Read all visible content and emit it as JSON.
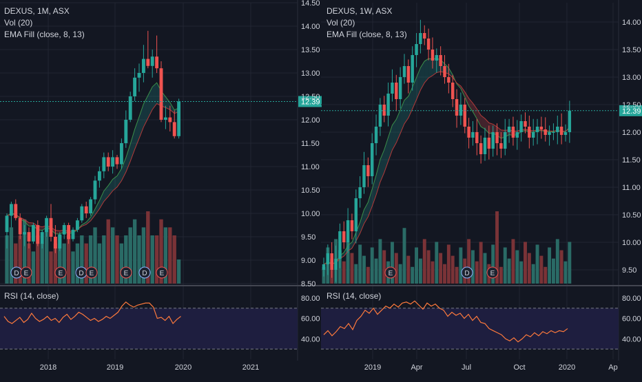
{
  "colors": {
    "background": "#131722",
    "grid": "#222632",
    "up": "#26a69a",
    "down": "#ef5350",
    "vol_up": "#2a6b66",
    "vol_down": "#7a3337",
    "ema_fast": "#3c8f4a",
    "ema_slow": "#b23a3a",
    "rsi_line": "#ff7a3c",
    "rsi_band": "#1e1e3f",
    "price_tag": "#26a69a",
    "event_bg": "#1d2330"
  },
  "chart_data": [
    {
      "type": "candlestick",
      "title": "DEXUS, 1M, ASX",
      "indicators": [
        "Vol (20)",
        "EMA Fill (close, 8, 13)"
      ],
      "last_price_label": "12.39",
      "y_ticks": [
        "14.50",
        "14.00",
        "13.50",
        "13.00",
        "12.50",
        "12.00",
        "11.50",
        "11.00",
        "10.50",
        "10.00",
        "9.50",
        "9.00",
        "8.50"
      ],
      "x_ticks": [
        "2018",
        "2019",
        "2020",
        "2021"
      ],
      "rsi": {
        "title": "RSI (14, close)",
        "y_ticks": [
          "80.00",
          "60.00",
          "40.00"
        ],
        "values": [
          62,
          57,
          55,
          58,
          61,
          56,
          59,
          65,
          60,
          57,
          59,
          62,
          58,
          60,
          56,
          61,
          64,
          59,
          62,
          66,
          64,
          61,
          58,
          60,
          57,
          59,
          62,
          60,
          63,
          66,
          72,
          76,
          73,
          71,
          73,
          74,
          75,
          75,
          71,
          60,
          61,
          58,
          62,
          55,
          59,
          62
        ]
      },
      "events": [
        "D",
        "E",
        "E",
        "D",
        "E",
        "E",
        "D",
        "E"
      ],
      "candles": [
        {
          "o": 9.6,
          "h": 10.0,
          "l": 9.25,
          "c": 9.95
        },
        {
          "o": 9.95,
          "h": 10.25,
          "l": 9.7,
          "c": 10.2
        },
        {
          "o": 10.2,
          "h": 10.3,
          "l": 9.85,
          "c": 9.9
        },
        {
          "o": 9.9,
          "h": 10.0,
          "l": 9.45,
          "c": 9.55
        },
        {
          "o": 9.55,
          "h": 9.75,
          "l": 9.3,
          "c": 9.6
        },
        {
          "o": 9.6,
          "h": 9.7,
          "l": 9.25,
          "c": 9.4
        },
        {
          "o": 9.4,
          "h": 9.8,
          "l": 9.35,
          "c": 9.75
        },
        {
          "o": 9.75,
          "h": 9.85,
          "l": 9.3,
          "c": 9.35
        },
        {
          "o": 9.35,
          "h": 9.65,
          "l": 9.25,
          "c": 9.6
        },
        {
          "o": 9.6,
          "h": 9.95,
          "l": 9.5,
          "c": 9.9
        },
        {
          "o": 9.9,
          "h": 10.2,
          "l": 9.4,
          "c": 9.5
        },
        {
          "o": 9.5,
          "h": 9.75,
          "l": 9.15,
          "c": 9.25
        },
        {
          "o": 9.25,
          "h": 9.6,
          "l": 9.2,
          "c": 9.55
        },
        {
          "o": 9.55,
          "h": 9.8,
          "l": 9.45,
          "c": 9.75
        },
        {
          "o": 9.75,
          "h": 9.8,
          "l": 9.35,
          "c": 9.45
        },
        {
          "o": 9.45,
          "h": 9.7,
          "l": 9.4,
          "c": 9.65
        },
        {
          "o": 9.65,
          "h": 9.9,
          "l": 9.6,
          "c": 9.85
        },
        {
          "o": 9.85,
          "h": 10.2,
          "l": 9.8,
          "c": 10.15
        },
        {
          "o": 10.15,
          "h": 10.25,
          "l": 9.9,
          "c": 10.0
        },
        {
          "o": 10.0,
          "h": 10.35,
          "l": 9.95,
          "c": 10.3
        },
        {
          "o": 10.3,
          "h": 10.8,
          "l": 10.2,
          "c": 10.7
        },
        {
          "o": 10.7,
          "h": 11.0,
          "l": 10.55,
          "c": 10.9
        },
        {
          "o": 10.9,
          "h": 11.3,
          "l": 10.75,
          "c": 11.2
        },
        {
          "o": 11.2,
          "h": 11.3,
          "l": 10.9,
          "c": 11.0
        },
        {
          "o": 11.0,
          "h": 11.35,
          "l": 10.85,
          "c": 11.2
        },
        {
          "o": 11.2,
          "h": 11.25,
          "l": 10.95,
          "c": 11.05
        },
        {
          "o": 11.05,
          "h": 11.6,
          "l": 10.95,
          "c": 11.5
        },
        {
          "o": 11.5,
          "h": 12.2,
          "l": 11.4,
          "c": 12.0
        },
        {
          "o": 12.0,
          "h": 12.6,
          "l": 11.95,
          "c": 12.5
        },
        {
          "o": 12.5,
          "h": 13.1,
          "l": 12.4,
          "c": 12.9
        },
        {
          "o": 12.9,
          "h": 13.2,
          "l": 12.6,
          "c": 13.0
        },
        {
          "o": 13.0,
          "h": 13.6,
          "l": 12.8,
          "c": 13.3
        },
        {
          "o": 13.3,
          "h": 13.9,
          "l": 13.1,
          "c": 13.15
        },
        {
          "o": 13.15,
          "h": 13.5,
          "l": 12.9,
          "c": 13.35
        },
        {
          "o": 13.35,
          "h": 13.8,
          "l": 13.0,
          "c": 13.1
        },
        {
          "o": 13.1,
          "h": 13.25,
          "l": 11.95,
          "c": 12.0
        },
        {
          "o": 12.0,
          "h": 12.3,
          "l": 11.8,
          "c": 12.05
        },
        {
          "o": 12.05,
          "h": 12.3,
          "l": 11.75,
          "c": 11.95
        },
        {
          "o": 11.95,
          "h": 12.2,
          "l": 11.6,
          "c": 11.65
        },
        {
          "o": 11.65,
          "h": 12.45,
          "l": 11.6,
          "c": 12.39
        }
      ],
      "volume": [
        6,
        7,
        5,
        6,
        8,
        5,
        4,
        6,
        5,
        7,
        4,
        5,
        6,
        5,
        6,
        4,
        5,
        6,
        5,
        6,
        7,
        5,
        6,
        8,
        7,
        6,
        5,
        6,
        7,
        8,
        6,
        7,
        9,
        6,
        6,
        8,
        7,
        7,
        6,
        3
      ]
    },
    {
      "type": "candlestick",
      "title": "DEXUS, 1W, ASX",
      "indicators": [
        "Vol (20)",
        "EMA Fill (close, 8, 13)"
      ],
      "last_price_label": "12.39",
      "y_ticks": [
        "14.00",
        "13.50",
        "13.00",
        "12.50",
        "12.00",
        "11.50",
        "11.00",
        "10.50",
        "10.00",
        "9.50"
      ],
      "x_ticks": [
        "2019",
        "Apr",
        "Jul",
        "Oct",
        "2020",
        "Ap"
      ],
      "rsi": {
        "title": "RSI (14, close)",
        "y_ticks": [
          "80.00",
          "60.00",
          "40.00"
        ],
        "values": [
          44,
          48,
          43,
          47,
          52,
          50,
          55,
          49,
          58,
          62,
          68,
          65,
          70,
          64,
          68,
          72,
          70,
          74,
          71,
          75,
          76,
          74,
          77,
          73,
          69,
          75,
          72,
          74,
          70,
          68,
          62,
          66,
          63,
          65,
          60,
          64,
          58,
          62,
          56,
          55,
          50,
          48,
          46,
          44,
          40,
          38,
          41,
          37,
          40,
          44,
          42,
          46,
          43,
          47,
          45,
          48,
          46,
          48,
          47,
          50
        ]
      },
      "events": [
        "E",
        "D",
        "E"
      ],
      "candles": []
    }
  ]
}
